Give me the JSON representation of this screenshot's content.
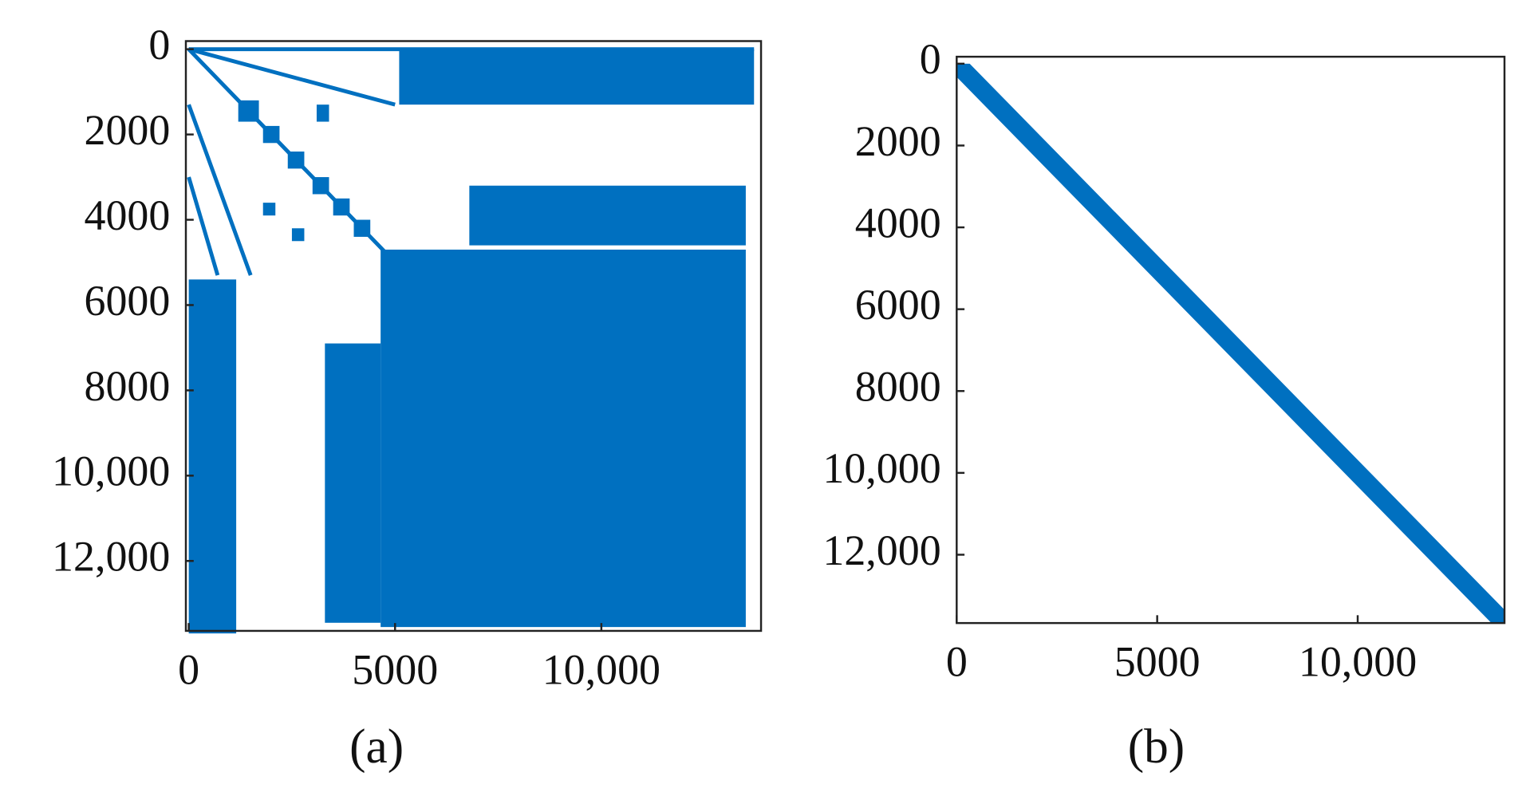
{
  "chart_data": [
    {
      "type": "spy",
      "caption": "(a)",
      "color": "#0070c0",
      "y_reversed": true,
      "xlim": [
        -70,
        13870
      ],
      "ylim": [
        -190,
        13640
      ],
      "xticks": [
        0,
        5000,
        {
          "value": 10000,
          "label": "10,000"
        }
      ],
      "yticks": [
        0,
        2000,
        4000,
        6000,
        8000,
        {
          "value": 10000,
          "label": "10,000"
        },
        {
          "value": 12000,
          "label": "12,000"
        }
      ],
      "regions": [
        {
          "x": [
            4650,
            13500
          ],
          "y": [
            4700,
            13550
          ]
        },
        {
          "x": [
            0,
            1150
          ],
          "y": [
            5400,
            13700
          ]
        },
        {
          "x": [
            3300,
            4650
          ],
          "y": [
            6900,
            13450
          ]
        },
        {
          "x": [
            5100,
            13700
          ],
          "y": [
            0,
            1300
          ]
        },
        {
          "x": [
            6800,
            13500
          ],
          "y": [
            3200,
            4600
          ]
        },
        {
          "x": [
            1200,
            1700
          ],
          "y": [
            1200,
            1700
          ]
        },
        {
          "x": [
            1800,
            2200
          ],
          "y": [
            1800,
            2200
          ]
        },
        {
          "x": [
            2400,
            2800
          ],
          "y": [
            2400,
            2800
          ]
        },
        {
          "x": [
            3000,
            3400
          ],
          "y": [
            3000,
            3400
          ]
        },
        {
          "x": [
            3500,
            3900
          ],
          "y": [
            3500,
            3900
          ]
        },
        {
          "x": [
            4000,
            4400
          ],
          "y": [
            4000,
            4400
          ]
        },
        {
          "x": [
            3100,
            3400
          ],
          "y": [
            1300,
            1700
          ]
        },
        {
          "x": [
            1800,
            2100
          ],
          "y": [
            3600,
            3900
          ]
        },
        {
          "x": [
            2500,
            2800
          ],
          "y": [
            4200,
            4500
          ]
        }
      ],
      "lines": [
        {
          "x": [
            0,
            4800
          ],
          "y": [
            0,
            4800
          ]
        },
        {
          "x": [
            0,
            13700
          ],
          "y": [
            0,
            0
          ]
        },
        {
          "x": [
            0,
            5000
          ],
          "y": [
            0,
            1300
          ]
        },
        {
          "x": [
            0,
            1500
          ],
          "y": [
            1300,
            5300
          ]
        },
        {
          "x": [
            0,
            700
          ],
          "y": [
            3000,
            5300
          ]
        }
      ]
    },
    {
      "type": "spy",
      "caption": "(b)",
      "color": "#0070c0",
      "y_reversed": true,
      "xlim": [
        0,
        13660
      ],
      "ylim": [
        -170,
        13670
      ],
      "xticks": [
        0,
        5000,
        {
          "value": 10000,
          "label": "10,000"
        }
      ],
      "yticks": [
        0,
        2000,
        4000,
        6000,
        8000,
        {
          "value": 10000,
          "label": "10,000"
        },
        {
          "value": 12000,
          "label": "12,000"
        }
      ],
      "band": {
        "x": [
          0,
          13660
        ],
        "y": [
          0,
          13670
        ],
        "width": 650
      }
    }
  ]
}
